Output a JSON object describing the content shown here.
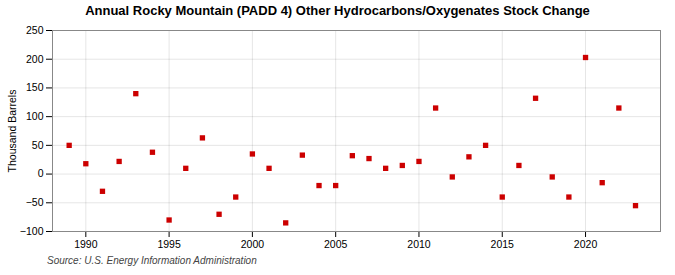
{
  "chart_data": {
    "type": "scatter",
    "title": "Annual Rocky Mountain (PADD 4) Other Hydrocarbons/Oxygenates Stock Change",
    "ylabel": "Thousand Barrels",
    "annotation": "Source: U.S. Energy Information Administration",
    "x": [
      1989,
      1990,
      1991,
      1992,
      1993,
      1994,
      1995,
      1996,
      1997,
      1998,
      1999,
      2000,
      2001,
      2002,
      2003,
      2004,
      2005,
      2006,
      2007,
      2008,
      2009,
      2010,
      2011,
      2012,
      2013,
      2014,
      2015,
      2016,
      2017,
      2018,
      2019,
      2020,
      2021,
      2022,
      2023
    ],
    "values": [
      50,
      18,
      -30,
      22,
      140,
      38,
      -80,
      10,
      63,
      -70,
      -40,
      35,
      10,
      -85,
      33,
      -20,
      -20,
      32,
      27,
      10,
      15,
      22,
      115,
      -5,
      30,
      50,
      -40,
      15,
      132,
      -5,
      -40,
      203,
      -15,
      115,
      -55
    ],
    "color": "#cc0000",
    "marker": "square",
    "xlim": [
      1988,
      2024.5
    ],
    "xticks": [
      1990,
      1995,
      2000,
      2005,
      2010,
      2015,
      2020
    ],
    "ylim": [
      -100,
      250
    ],
    "yticks": [
      -100,
      -50,
      0,
      50,
      100,
      150,
      200,
      250
    ],
    "grid": true
  }
}
